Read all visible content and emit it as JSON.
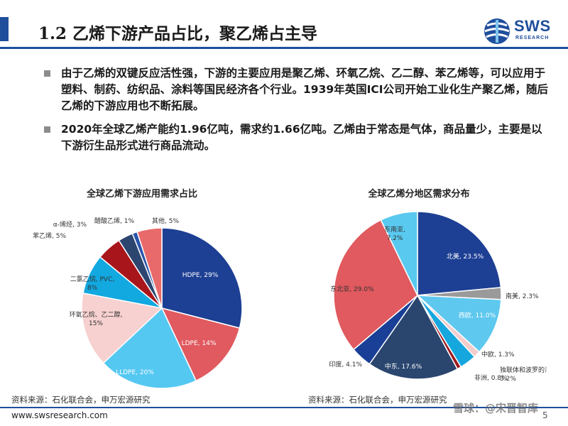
{
  "header": {
    "title": "1.2 乙烯下游产品占比，聚乙烯占主导",
    "logo_text": "SWS",
    "logo_subtext": "RESEARCH"
  },
  "bullets": [
    "由于乙烯的双键反应活性强，下游的主要应用是聚乙烯、环氧乙烷、乙二醇、苯乙烯等，可以应用于塑料、制药、纺织品、涂料等国民经济各个行业。1939年英国ICI公司开始工业化生产聚乙烯，随后乙烯的下游应用也不断拓展。",
    "2020年全球乙烯产能约1.96亿吨，需求约1.66亿吨。乙烯由于常态是气体，商品量少，主要是以下游衍生品形式进行商品流动。"
  ],
  "chart_data": [
    {
      "type": "pie",
      "title": "全球乙烯下游应用需求占比",
      "slices": [
        {
          "label": "HDPE, 29%",
          "value": 29,
          "color": "#1d3f94"
        },
        {
          "label": "LDPE, 14%",
          "value": 14,
          "color": "#e05a5f"
        },
        {
          "label": "LLDPE, 20%",
          "value": 20,
          "color": "#55c8f2"
        },
        {
          "label": "环氧乙烷、乙二醇, 15%",
          "value": 15,
          "color": "#f7d0d0"
        },
        {
          "label": "二氯乙烷, PVC, 8%",
          "value": 8,
          "color": "#12a8e0"
        },
        {
          "label": "苯乙烯, 5%",
          "value": 5,
          "color": "#a8151b"
        },
        {
          "label": "α-烯烃, 3%",
          "value": 3,
          "color": "#2d4670"
        },
        {
          "label": "醋酸乙烯, 1%",
          "value": 1,
          "color": "#2a55a8"
        },
        {
          "label": "其他, 5%",
          "value": 5,
          "color": "#e86a6a"
        }
      ],
      "source": "资料来源：石化联合会，申万宏源研究"
    },
    {
      "type": "pie",
      "title": "全球乙烯分地区需求分布",
      "slices": [
        {
          "label": "北美, 23.5%",
          "value": 23.5,
          "color": "#1d3f94"
        },
        {
          "label": "南美, 2.3%",
          "value": 2.3,
          "color": "#9a9a9a"
        },
        {
          "label": "西欧, 11.0%",
          "value": 11.0,
          "color": "#5ec8ef"
        },
        {
          "label": "中欧, 1.3%",
          "value": 1.3,
          "color": "#f3cccc"
        },
        {
          "label": "独联体和波罗的海, 3.2%",
          "value": 3.2,
          "color": "#15a7de"
        },
        {
          "label": "非洲, 0.8%",
          "value": 0.8,
          "color": "#9e1a1f"
        },
        {
          "label": "中东, 17.6%",
          "value": 17.6,
          "color": "#2a466f"
        },
        {
          "label": "印度, 4.1%",
          "value": 4.1,
          "color": "#1a3f96"
        },
        {
          "label": "东北亚, 29.0%",
          "value": 29.0,
          "color": "#e05a5f"
        },
        {
          "label": "东南亚, 7.2%",
          "value": 7.2,
          "color": "#59c9f0"
        }
      ],
      "source": "资料来源：石化联合会，申万宏源研究"
    }
  ],
  "footer": {
    "url": "www.swsresearch.com",
    "page_number": "5",
    "watermark": "雪球：@宋晋智库"
  }
}
